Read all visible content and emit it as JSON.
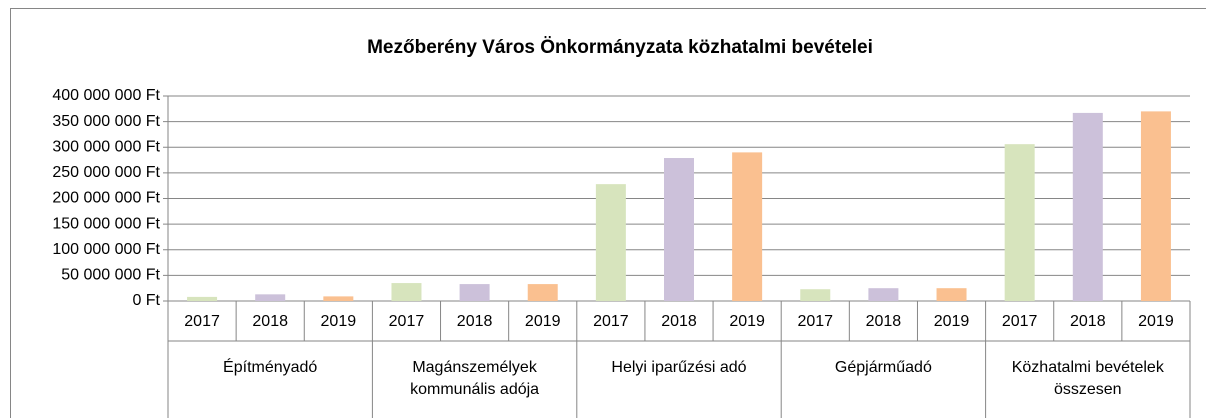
{
  "chart_data": {
    "type": "bar",
    "title": "Mezőberény Város Önkormányzata közhatalmi bevételei",
    "categories": [
      "Építményadó",
      "Magánszemélyek kommunális adója",
      "Helyi iparűzési adó",
      "Gépjárműadó",
      "Közhatalmi bevételek összesen"
    ],
    "series": [
      {
        "name": "2017",
        "color": "#d7e4bd",
        "values": [
          8000000,
          35000000,
          228000000,
          23000000,
          306000000
        ]
      },
      {
        "name": "2018",
        "color": "#ccc1da",
        "values": [
          13000000,
          33000000,
          279000000,
          25000000,
          367000000
        ]
      },
      {
        "name": "2019",
        "color": "#fac090",
        "values": [
          9000000,
          33000000,
          290000000,
          25000000,
          370000000
        ]
      }
    ],
    "ylim": [
      0,
      400000000
    ],
    "yticks": [
      {
        "value": 0,
        "label": "0 Ft"
      },
      {
        "value": 50000000,
        "label": "50 000 000 Ft"
      },
      {
        "value": 100000000,
        "label": "100 000 000 Ft"
      },
      {
        "value": 150000000,
        "label": "150 000 000 Ft"
      },
      {
        "value": 200000000,
        "label": "200 000 000 Ft"
      },
      {
        "value": 250000000,
        "label": "250 000 000 Ft"
      },
      {
        "value": 300000000,
        "label": "300 000 000 Ft"
      },
      {
        "value": 350000000,
        "label": "350 000 000 Ft"
      },
      {
        "value": 400000000,
        "label": "400 000 000 Ft"
      }
    ],
    "grid": true
  }
}
